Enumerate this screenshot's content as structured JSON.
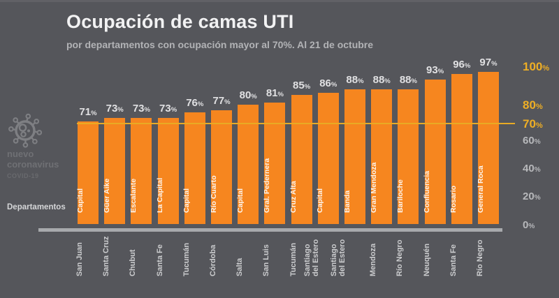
{
  "sidebar": {
    "icon": "coronavirus-icon",
    "brand_line1": "nuevo",
    "brand_line2": "coronavirus",
    "brand_line3": "COVID-19",
    "axis_title": "Departamentos"
  },
  "colors": {
    "background": "#55565b",
    "bar_orange": "#f6861f",
    "accent_yellow": "#eeae25",
    "threshold_yellow": "#e9ab24",
    "tick_gray": "#b7b8bb",
    "baseline_gray": "#a8aaad",
    "title_white": "#f2f2f3",
    "subtitle_gray": "#b2b3b6"
  },
  "chart_data": {
    "type": "bar",
    "title": "Ocupación de camas UTI",
    "subtitle": "por departamentos con ocupación mayor al 70%. Al 21 de octubre",
    "x_axis_title": "Departamentos",
    "unit": "%",
    "threshold_value": 70,
    "ylim": [
      0,
      100
    ],
    "y_axis_ticks": [
      {
        "value": 100,
        "highlight": true
      },
      {
        "value": 80,
        "highlight": true
      },
      {
        "value": 70,
        "highlight": true
      },
      {
        "value": 60,
        "highlight": false
      },
      {
        "value": 40,
        "highlight": false
      },
      {
        "value": 20,
        "highlight": false
      },
      {
        "value": 0,
        "highlight": false
      }
    ],
    "bars": [
      {
        "department": "Capital",
        "province": "San Juan",
        "value": 71
      },
      {
        "department": "Güer Aike",
        "province": "Santa Cruz",
        "value": 73
      },
      {
        "department": "Escalante",
        "province": "Chubut",
        "value": 73
      },
      {
        "department": "La Capital",
        "province": "Santa Fe",
        "value": 73
      },
      {
        "department": "Capital",
        "province": "Tucumán",
        "value": 76
      },
      {
        "department": "Río Cuarto",
        "province": "Córdoba",
        "value": 77
      },
      {
        "department": "Capital",
        "province": "Salta",
        "value": 80
      },
      {
        "department": "Gral. Pedernera",
        "province": "San Luis",
        "value": 81
      },
      {
        "department": "Cruz Alta",
        "province": "Tucumán",
        "value": 85
      },
      {
        "department": "Capital",
        "province": "Santiago\ndel Estero",
        "value": 86
      },
      {
        "department": "Banda",
        "province": "Santiago\ndel Estero",
        "value": 88
      },
      {
        "department": "Gran Mendoza",
        "province": "Mendoza",
        "value": 88
      },
      {
        "department": "Bariloche",
        "province": "Río Negro",
        "value": 88
      },
      {
        "department": "Confluencia",
        "province": "Neuquén",
        "value": 93
      },
      {
        "department": "Rosario",
        "province": "Santa Fe",
        "value": 96
      },
      {
        "department": "General Roca",
        "province": "Río Negro",
        "value": 97
      }
    ]
  }
}
